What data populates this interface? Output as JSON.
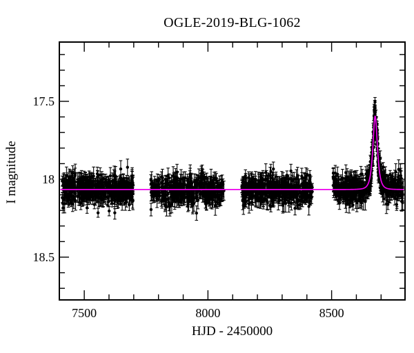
{
  "chart_data": {
    "type": "scatter",
    "title": "OGLE-2019-BLG-1062",
    "xlabel": "HJD - 2450000",
    "ylabel": "I magnitude",
    "axes": {
      "x_range": [
        7402,
        8794
      ],
      "y_range": [
        17.124,
        18.77
      ],
      "y_inverted": true,
      "x_major_ticks": [
        7500,
        8000,
        8500
      ],
      "x_tick_labels": [
        "7500",
        "8000",
        "8500"
      ],
      "x_minor_step": 100,
      "y_major_ticks": [
        17.5,
        18.0,
        18.5
      ],
      "y_tick_labels": [
        "17.5",
        "18",
        "18.5"
      ],
      "y_minor_step": 0.1,
      "ticks_on_all_sides": true
    },
    "style": {
      "background": "#ffffff",
      "frame_color": "#000000",
      "point_color": "#000000",
      "errorbar_color": "#000000",
      "model_color": "#ee00ee"
    },
    "model_curve": {
      "type": "paczynski_microlensing",
      "baseline_mag": 18.066,
      "t0": 8676,
      "tE": 12.5,
      "u0": 0.79,
      "peak_mag": 17.59
    },
    "data_generation": {
      "seasons": [
        {
          "t_start": 7411,
          "t_end": 7698,
          "n_points": 430
        },
        {
          "t_start": 7768,
          "t_end": 8067,
          "n_points": 400
        },
        {
          "t_start": 8137,
          "t_end": 8422,
          "n_points": 420
        },
        {
          "t_start": 8506,
          "t_end": 8790,
          "n_points": 430
        }
      ],
      "peak_extra": {
        "t_start": 8650,
        "t_end": 8704,
        "n_points": 95
      },
      "noise_sigma_mag": 0.045,
      "errorbar_half_mag": [
        0.025,
        0.062
      ],
      "point_radius_px": 2.2,
      "seed": 20191062
    }
  }
}
